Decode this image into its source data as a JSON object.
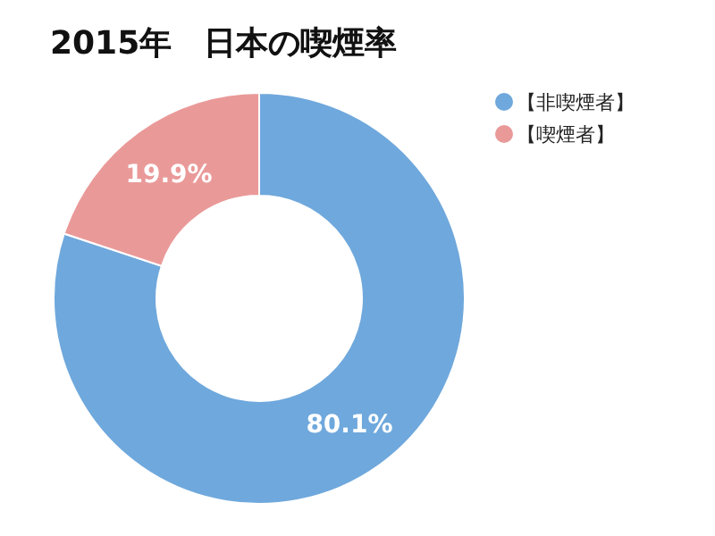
{
  "chart_data": {
    "type": "donut",
    "title": "2015年　日本の喫煙率",
    "categories": [
      "【非喫煙者】",
      "【喫煙者】"
    ],
    "values": [
      80.1,
      19.9
    ],
    "colors": [
      "#6fa8dc",
      "#ea9999"
    ],
    "value_labels": [
      "80.1%",
      "19.9%"
    ],
    "legend": "top right"
  }
}
